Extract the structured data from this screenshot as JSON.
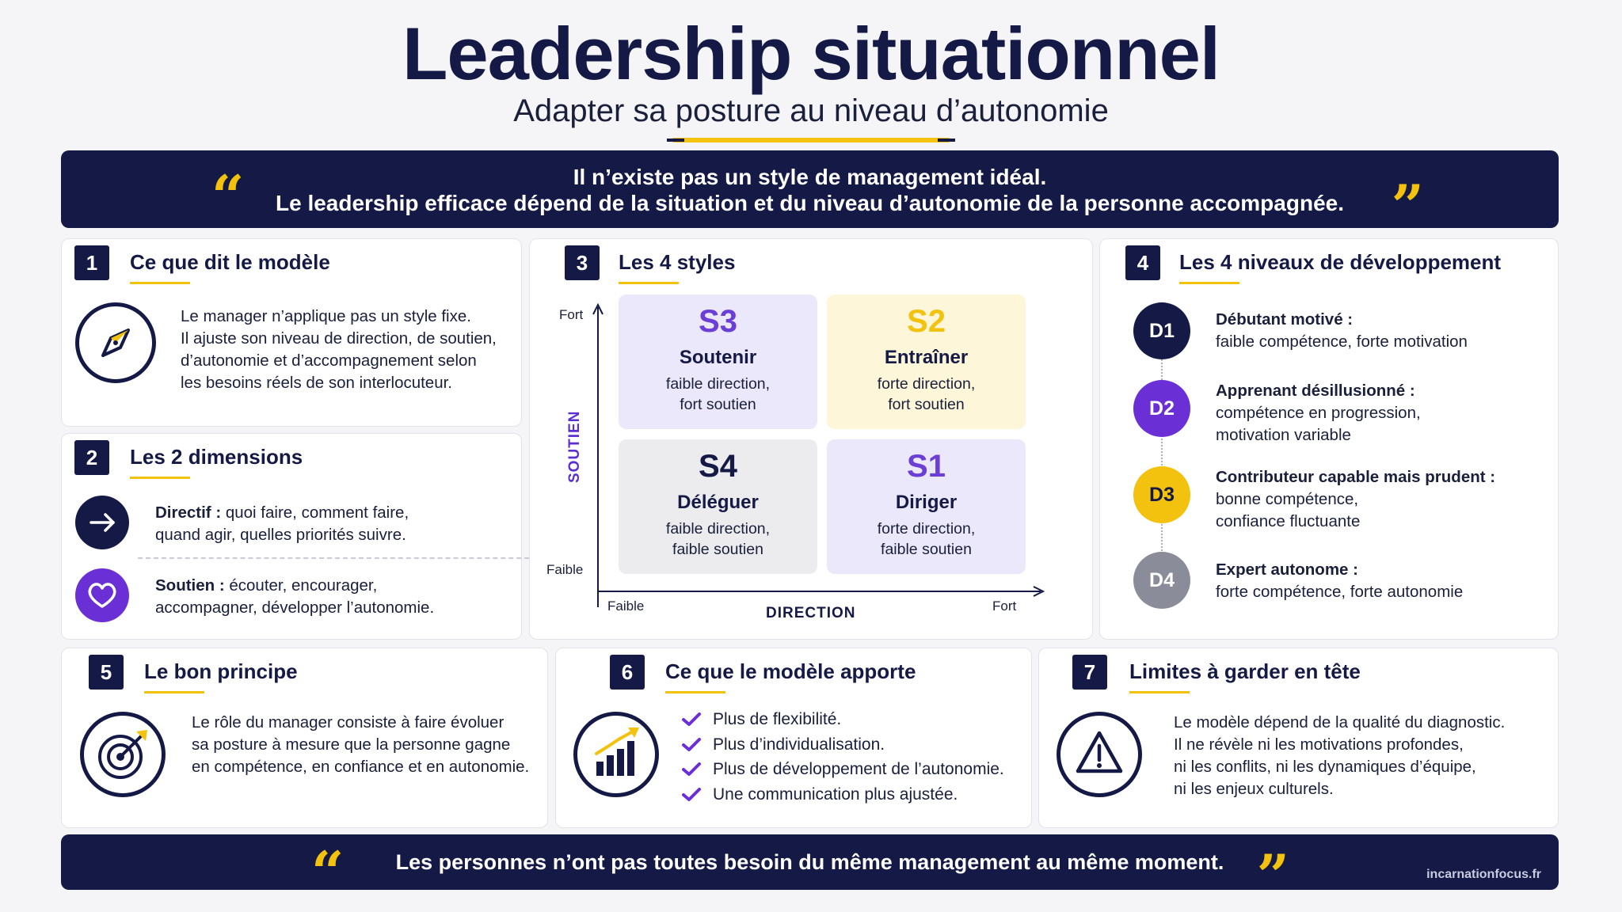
{
  "header": {
    "title": "Leadership situationnel",
    "subtitle": "Adapter sa posture au niveau d’autonomie"
  },
  "top_quote": {
    "line1": "Il n’existe pas un style de management idéal.",
    "line2": "Le leadership efficace dépend de la situation et du niveau d’autonomie de la personne accompagnée.",
    "open_mark": "“",
    "close_mark": "”"
  },
  "section1": {
    "number": "1",
    "title": "Ce que dit le modèle",
    "icon": "compass-icon",
    "text_lines": [
      "Le manager n’applique pas un style fixe.",
      "Il ajuste son niveau de direction, de soutien,",
      "d’autonomie et d’accompagnement selon",
      "les besoins réels de son interlocuteur."
    ]
  },
  "section2": {
    "number": "2",
    "title": "Les 2 dimensions",
    "directif": {
      "icon": "arrow-right-icon",
      "label": "Directif :",
      "line1": " quoi faire, comment faire,",
      "line2": "quand agir, quelles priorités suivre."
    },
    "soutien": {
      "icon": "heart-icon",
      "label": "Soutien :",
      "line1": " écouter, encourager,",
      "line2": "accompagner, développer l’autonomie."
    }
  },
  "section3": {
    "number": "3",
    "title": "Les 4 styles",
    "y_axis": {
      "title": "SOUTIEN",
      "high": "Fort",
      "low": "Faible"
    },
    "x_axis": {
      "title": "DIRECTION",
      "low": "Faible",
      "high": "Fort"
    },
    "styles": [
      {
        "code": "S3",
        "name": "Soutenir",
        "desc1": "faible direction,",
        "desc2": "fort soutien",
        "color": "#6b3fd6",
        "bg": "#ece8fb"
      },
      {
        "code": "S2",
        "name": "Entraîner",
        "desc1": "forte direction,",
        "desc2": "fort soutien",
        "color": "#f2c20e",
        "bg": "#fdf6d8"
      },
      {
        "code": "S4",
        "name": "Déléguer",
        "desc1": "faible direction,",
        "desc2": "faible soutien",
        "color": "#141a45",
        "bg": "#ececee"
      },
      {
        "code": "S1",
        "name": "Diriger",
        "desc1": "forte direction,",
        "desc2": "faible soutien",
        "color": "#6b3fd6",
        "bg": "#ece8fb"
      }
    ]
  },
  "section4": {
    "number": "4",
    "title": "Les 4 niveaux de développement",
    "levels": [
      {
        "code": "D1",
        "label": "Débutant motivé :",
        "lines": [
          "faible compétence, forte motivation"
        ],
        "color": "#141a45"
      },
      {
        "code": "D2",
        "label": "Apprenant désillusionné :",
        "lines": [
          "compétence en progression,",
          "motivation variable"
        ],
        "color": "#6b2fd6"
      },
      {
        "code": "D3",
        "label": "Contributeur capable mais prudent :",
        "lines": [
          "bonne compétence,",
          "confiance fluctuante"
        ],
        "color": "#f2c20e"
      },
      {
        "code": "D4",
        "label": "Expert autonome :",
        "lines": [
          "forte compétence, forte autonomie"
        ],
        "color": "#8a8d99"
      }
    ]
  },
  "section5": {
    "number": "5",
    "title": "Le bon principe",
    "icon": "target-icon",
    "text_lines": [
      "Le rôle du manager consiste à faire évoluer",
      "sa posture à mesure que la personne gagne",
      "en compétence, en confiance et en autonomie."
    ]
  },
  "section6": {
    "number": "6",
    "title": "Ce que le modèle apporte",
    "icon": "growth-chart-icon",
    "items": [
      "Plus de flexibilité.",
      "Plus d’individualisation.",
      "Plus de développement de l’autonomie.",
      "Une communication plus ajustée."
    ]
  },
  "section7": {
    "number": "7",
    "title": "Limites à garder en tête",
    "icon": "warning-icon",
    "text_lines": [
      "Le modèle dépend de la qualité du diagnostic.",
      "Il ne révèle ni les motivations profondes,",
      "ni les conflits, ni les dynamiques d’équipe,",
      "ni les enjeux culturels."
    ]
  },
  "bottom_quote": {
    "text": "Les personnes n’ont pas toutes besoin du même management au même moment.",
    "open_mark": "“",
    "close_mark": "”",
    "credit": "incarnationfocus.fr"
  },
  "colors": {
    "navy": "#141a45",
    "yellow": "#f2c20e",
    "purple": "#6b3fd6",
    "grey": "#8a8d99"
  }
}
